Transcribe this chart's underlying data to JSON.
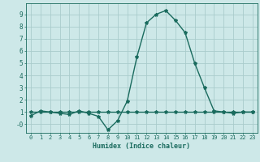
{
  "x": [
    0,
    1,
    2,
    3,
    4,
    5,
    6,
    7,
    8,
    9,
    10,
    11,
    12,
    13,
    14,
    15,
    16,
    17,
    18,
    19,
    20,
    21,
    22,
    23
  ],
  "y_curve": [
    0.7,
    1.1,
    1.0,
    0.9,
    0.8,
    1.1,
    0.9,
    0.65,
    -0.45,
    0.3,
    1.9,
    5.5,
    8.3,
    9.0,
    9.3,
    8.5,
    7.5,
    5.0,
    3.0,
    1.1,
    1.0,
    0.9,
    1.0,
    1.0
  ],
  "y_flat": [
    1.0,
    1.0,
    1.0,
    1.0,
    1.0,
    1.0,
    1.0,
    1.0,
    1.0,
    1.0,
    1.0,
    1.0,
    1.0,
    1.0,
    1.0,
    1.0,
    1.0,
    1.0,
    1.0,
    1.0,
    1.0,
    1.0,
    1.0,
    1.0
  ],
  "line_color": "#1a6b5e",
  "bg_color": "#cde8e8",
  "grid_color": "#aacccc",
  "xlabel": "Humidex (Indice chaleur)",
  "xlim": [
    -0.5,
    23.5
  ],
  "ylim": [
    -0.7,
    9.9
  ],
  "yticks": [
    0,
    1,
    2,
    3,
    4,
    5,
    6,
    7,
    8,
    9
  ],
  "ytick_labels": [
    "-0",
    "1",
    "2",
    "3",
    "4",
    "5",
    "6",
    "7",
    "8",
    "9"
  ],
  "xticks": [
    0,
    1,
    2,
    3,
    4,
    5,
    6,
    7,
    8,
    9,
    10,
    11,
    12,
    13,
    14,
    15,
    16,
    17,
    18,
    19,
    20,
    21,
    22,
    23
  ],
  "marker": "*",
  "markersize": 3,
  "linewidth": 1.0
}
